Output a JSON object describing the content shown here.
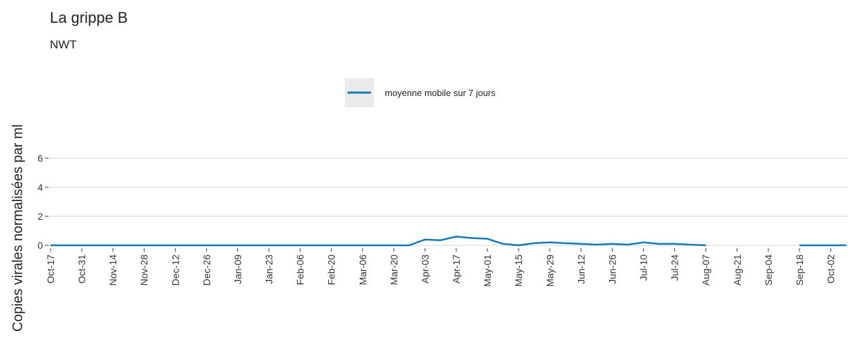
{
  "chart_data": {
    "type": "line",
    "title": "La grippe B",
    "subtitle": "NWT",
    "y_label": "Copies virales normalisées par ml",
    "categories": [
      "Oct-17",
      null,
      "Oct-31",
      null,
      "Nov-14",
      null,
      "Nov-28",
      null,
      "Dec-12",
      null,
      "Dec-26",
      null,
      "Jan-09",
      null,
      "Jan-23",
      null,
      "Feb-06",
      null,
      "Feb-20",
      null,
      "Mar-06",
      null,
      "Mar-20",
      null,
      "Apr-03",
      null,
      "Apr-17",
      null,
      "May-01",
      null,
      "May-15",
      null,
      "May-29",
      null,
      "Jun-12",
      null,
      "Jun-26",
      null,
      "Jul-10",
      null,
      "Jul-24",
      null,
      "Aug-07",
      null,
      "Aug-21",
      null,
      "Sep-04",
      null,
      "Sep-18",
      null,
      "Oct-02",
      null
    ],
    "series": [
      {
        "name": "moyenne mobile sur 7 jours",
        "color": "#1479b8",
        "values": [
          0,
          0,
          0,
          0,
          0,
          0,
          0,
          0,
          0,
          0,
          0,
          0,
          0,
          0,
          0,
          0,
          0,
          0,
          0,
          0,
          0,
          0,
          0,
          0,
          0.4,
          0.35,
          0.6,
          0.5,
          0.45,
          0.1,
          0,
          0.15,
          0.2,
          0.15,
          0.1,
          0.05,
          0.1,
          0.05,
          0.2,
          0.1,
          0.1,
          0.05,
          0,
          null,
          null,
          null,
          null,
          null,
          0,
          0,
          0,
          0
        ]
      }
    ],
    "ylim": [
      -0.2,
      6.3
    ],
    "yticks": [
      0,
      2,
      4,
      6
    ],
    "grid": true,
    "legend": "top"
  }
}
